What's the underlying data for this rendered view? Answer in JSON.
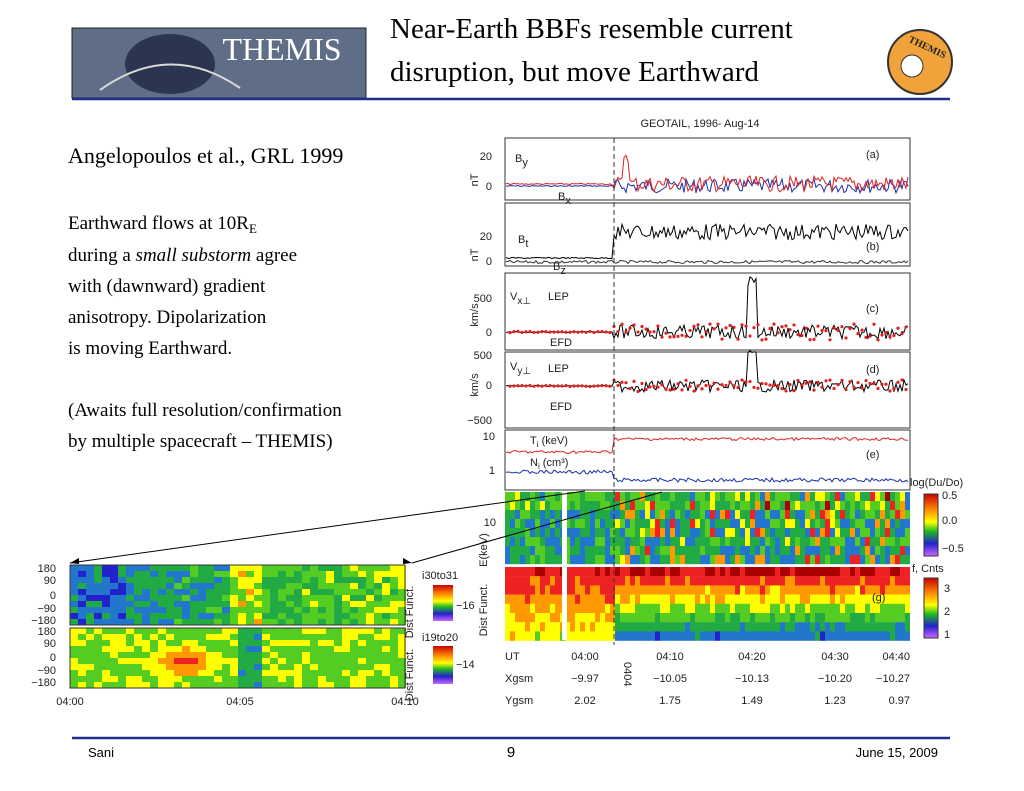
{
  "header": {
    "logo_text": "THEMIS",
    "title_lines": [
      "Near-Earth BBFs resemble current",
      "disruption, but move Earthward"
    ],
    "badge": "THEMIS"
  },
  "body": {
    "citation": "Angelopoulos et al., GRL 1999",
    "lines": [
      {
        "text": "Earthward flows at 10R",
        "sub": "E"
      },
      {
        "text": "during a ",
        "em": "small substorm",
        "after": " agree"
      },
      {
        "text": "with (dawnward) gradient"
      },
      {
        "text": "anisotropy. Dipolarization"
      },
      {
        "text": "is moving Earthward."
      }
    ],
    "note_lines": [
      "(Awaits full resolution/confirmation",
      "by multiple spacecraft – THEMIS)"
    ]
  },
  "figure": {
    "title": "GEOTAIL, 1996- Aug-14",
    "panel_a": {
      "letter": "(a)",
      "ticks": [
        "20",
        "0"
      ],
      "unit": "nT",
      "by": {
        "main": "B",
        "sub": "y"
      },
      "bx": {
        "main": "B",
        "sub": "x"
      }
    },
    "panel_b": {
      "letter": "(b)",
      "ticks": [
        "20",
        "0"
      ],
      "unit": "nT",
      "bt": {
        "main": "B",
        "sub": "t"
      },
      "bz": {
        "main": "B",
        "sub": "z"
      }
    },
    "panel_c": {
      "letter": "(c)",
      "ticks": [
        "500",
        "0"
      ],
      "unit": "km/s",
      "v": {
        "main": "V",
        "sub": "x⊥"
      },
      "lep": "LEP",
      "efd": "EFD"
    },
    "panel_d": {
      "letter": "(d)",
      "ticks": [
        "500",
        "0",
        "−500"
      ],
      "unit": "km/s",
      "v": {
        "main": "V",
        "sub": "y⊥"
      },
      "lep": "LEP",
      "efd": "EFD"
    },
    "panel_e": {
      "letter": "(e)",
      "ticks": [
        "10",
        "1"
      ],
      "ti": {
        "main": "T",
        "sub": "i",
        "rest": " (keV)"
      },
      "ni": {
        "main": "N",
        "sub": "i",
        "rest": " (cm³)"
      }
    },
    "spectro": {
      "tick": "10",
      "unit": "E(keV)",
      "cbar1_title": "log(Du/Do)",
      "cbar1_ticks": [
        "0.5",
        "0.0",
        "−0.5"
      ],
      "dist": "Dist Funct.",
      "cbar2_title": "f, Cnts",
      "cbar2_ticks": [
        "3",
        "2",
        "1"
      ],
      "letter": "(g)"
    },
    "ut": {
      "label": "UT",
      "times": [
        "04:00",
        "04:10",
        "04:20",
        "04:30",
        "04:40"
      ],
      "marker": "0404"
    },
    "xgsm": {
      "label": "Xgsm",
      "values": [
        "−9.97",
        "−10.05",
        "−10.13",
        "−10.20",
        "−10.27"
      ]
    },
    "ygsm": {
      "label": "Ygsm",
      "values": [
        "2.02",
        "1.75",
        "1.49",
        "1.23",
        "0.97"
      ]
    }
  },
  "inset": {
    "ticks": [
      "180",
      "90",
      "0",
      "−90",
      "−180"
    ],
    "top_label": "i30to31",
    "bottom_label": "i19to20",
    "top_cbar": "−16",
    "bottom_cbar": "−14",
    "times": [
      "04:00",
      "04:05",
      "04:10"
    ],
    "side": "Dist Funct."
  },
  "footer": {
    "author": "Sani",
    "page": "9",
    "date": "June 15, 2009"
  }
}
